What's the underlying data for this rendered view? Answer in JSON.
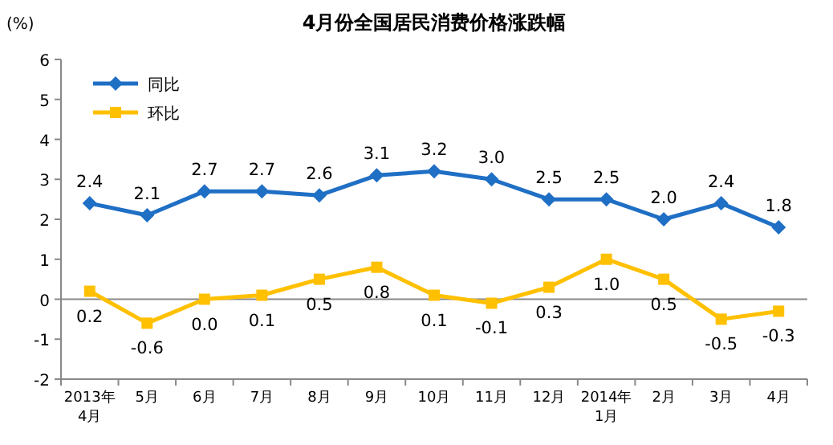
{
  "chart_data": {
    "type": "line",
    "title": "4月份全国居民消费价格涨跌幅",
    "ylabel": "(%)",
    "categories": [
      "2013年\n4月",
      "5月",
      "6月",
      "7月",
      "8月",
      "9月",
      "10月",
      "11月",
      "12月",
      "2014年\n1月",
      "2月",
      "3月",
      "4月"
    ],
    "series": [
      {
        "name": "同比",
        "color": "#1f6fc5",
        "marker": "diamond",
        "values": [
          2.4,
          2.1,
          2.7,
          2.7,
          2.6,
          3.1,
          3.2,
          3.0,
          2.5,
          2.5,
          2.0,
          2.4,
          1.8
        ],
        "value_labels": [
          "2.4",
          "2.1",
          "2.7",
          "2.7",
          "2.6",
          "3.1",
          "3.2",
          "3.0",
          "2.5",
          "2.5",
          "2.0",
          "2.4",
          "1.8"
        ]
      },
      {
        "name": "环比",
        "color": "#ffc000",
        "marker": "square",
        "values": [
          0.2,
          -0.6,
          0.0,
          0.1,
          0.5,
          0.8,
          0.1,
          -0.1,
          0.3,
          1.0,
          0.5,
          -0.5,
          -0.3
        ],
        "value_labels": [
          "0.2",
          "-0.6",
          "0.0",
          "0.1",
          "0.5",
          "0.8",
          "0.1",
          "-0.1",
          "0.3",
          "1.0",
          "0.5",
          "-0.5",
          "-0.3"
        ]
      }
    ],
    "ylim": [
      -2,
      6
    ],
    "yticks": [
      -2,
      -1,
      0,
      1,
      2,
      3,
      4,
      5,
      6
    ],
    "legend": "top left"
  }
}
